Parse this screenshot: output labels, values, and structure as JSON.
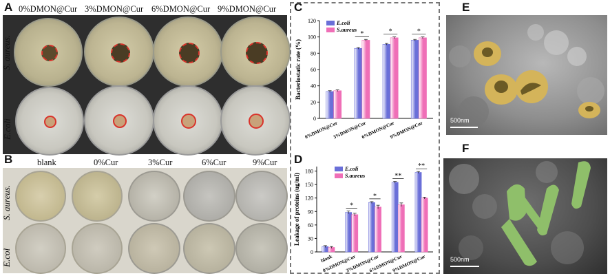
{
  "panels": {
    "a": "A",
    "b": "B",
    "c": "C",
    "d": "D",
    "e": "E",
    "f": "F"
  },
  "panel_a": {
    "columns": [
      "0%DMON@Cur",
      "3%DMON@Cur",
      "6%DMON@Cur",
      "9%DMON@Cur"
    ],
    "rows": [
      "S. aureus.",
      "E.coli"
    ],
    "inhibition_zone_color": "#d9332b"
  },
  "panel_b": {
    "columns": [
      "blank",
      "0%Cur",
      "3%Cur",
      "6%Cur",
      "9%Cur"
    ],
    "rows": [
      "S. aureus.",
      "E.col"
    ]
  },
  "panel_e": {
    "scale": "500nm",
    "highlight_color": "#d4b45a"
  },
  "panel_f": {
    "scale": "500nm",
    "highlight_color": "#8fbf6a"
  },
  "chart_data": [
    {
      "type": "bar",
      "panel": "C",
      "categories": [
        "0%DMON@Cur",
        "3%DMON@Cur",
        "6%DMON@Cur",
        "9%DMON@Cur"
      ],
      "series": [
        {
          "name": "E.coli",
          "values": [
            33,
            86,
            91,
            96
          ],
          "errors": [
            1,
            1,
            1,
            1
          ],
          "color": "#6a6fd8"
        },
        {
          "name": "S.aureus",
          "values": [
            34,
            96,
            99,
            99
          ],
          "errors": [
            1,
            1,
            1,
            1
          ],
          "color": "#ef6fb7"
        }
      ],
      "xlabel": "",
      "ylabel": "Bacteriostatic rate (%)",
      "ylim": [
        0,
        120
      ],
      "yticks": [
        0,
        20,
        40,
        60,
        80,
        100,
        120
      ],
      "significance": [
        "",
        "*",
        "*",
        "*"
      ],
      "legend": "top-left"
    },
    {
      "type": "bar",
      "panel": "D",
      "categories": [
        "blank",
        "0%DMON@Cur",
        "3%DMON@Cur",
        "6%DMON@Cur",
        "9%DMON@Cur"
      ],
      "series": [
        {
          "name": "E.coli",
          "values": [
            12,
            88,
            110,
            155,
            177
          ],
          "errors": [
            2,
            3,
            2,
            2,
            2
          ],
          "color": "#6a6fd8"
        },
        {
          "name": "S.aureus",
          "values": [
            10,
            83,
            100,
            105,
            120
          ],
          "errors": [
            2,
            3,
            4,
            4,
            2
          ],
          "color": "#ef6fb7"
        }
      ],
      "xlabel": "",
      "ylabel": "Leakage of proteins (ug/ml)",
      "ylim": [
        0,
        190
      ],
      "yticks": [
        0,
        30,
        60,
        90,
        120,
        150,
        180
      ],
      "significance": [
        "",
        "*",
        "*",
        "**",
        "**"
      ],
      "legend": "top-left"
    }
  ]
}
